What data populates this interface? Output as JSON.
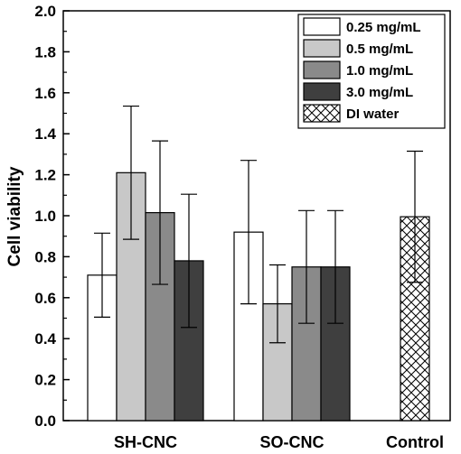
{
  "chart_data": {
    "type": "bar",
    "title": "",
    "xlabel": "",
    "ylabel": "Cell viability",
    "ylim": [
      0,
      2.0
    ],
    "yticks": [
      "0.0",
      "0.2",
      "0.4",
      "0.6",
      "0.8",
      "1.0",
      "1.2",
      "1.4",
      "1.6",
      "1.8",
      "2.0"
    ],
    "categories": [
      "SH-CNC",
      "SO-CNC",
      "Control"
    ],
    "grid": false,
    "legend_position": "top-right",
    "series": [
      {
        "name": "0.25 mg/mL",
        "color": "#ffffff",
        "pattern": "solid",
        "values": [
          0.71,
          0.92,
          null
        ],
        "errors": [
          0.205,
          0.35,
          null
        ]
      },
      {
        "name": "0.5 mg/mL",
        "color": "#c8c8c8",
        "pattern": "solid",
        "values": [
          1.21,
          0.57,
          null
        ],
        "errors": [
          0.325,
          0.19,
          null
        ]
      },
      {
        "name": "1.0 mg/mL",
        "color": "#8a8a8a",
        "pattern": "solid",
        "values": [
          1.015,
          0.75,
          null
        ],
        "errors": [
          0.35,
          0.275,
          null
        ]
      },
      {
        "name": "3.0 mg/mL",
        "color": "#3f3f3f",
        "pattern": "solid",
        "values": [
          0.78,
          0.75,
          null
        ],
        "errors": [
          0.325,
          0.275,
          null
        ]
      },
      {
        "name": "DI water",
        "color": "#ffffff",
        "pattern": "crosshatch",
        "values": [
          null,
          null,
          0.995
        ],
        "errors": [
          null,
          null,
          0.32
        ]
      }
    ]
  }
}
